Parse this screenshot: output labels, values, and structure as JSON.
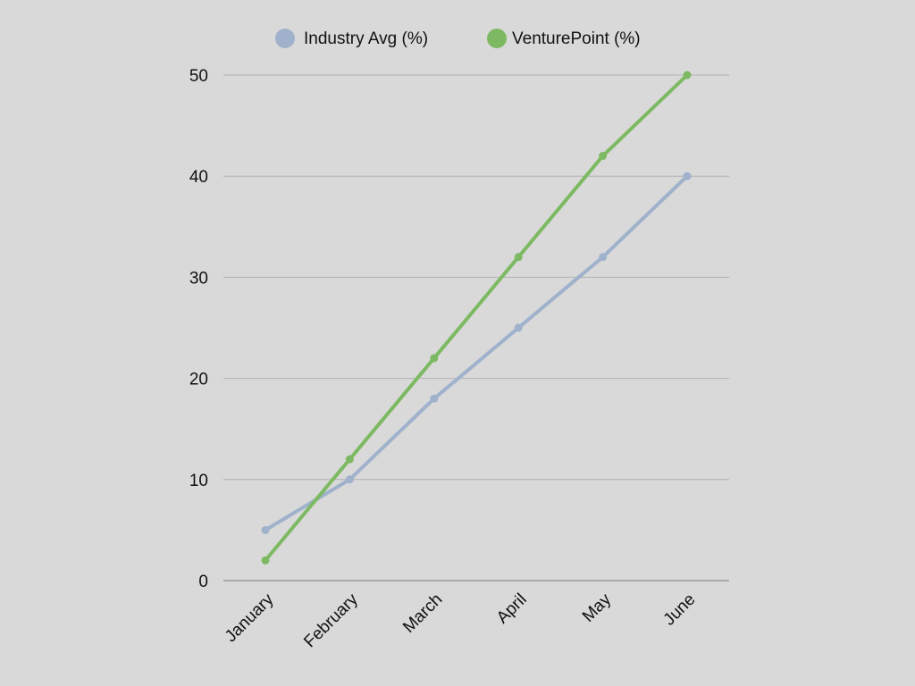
{
  "chart_data": {
    "type": "line",
    "categories": [
      "January",
      "February",
      "March",
      "April",
      "May",
      "June"
    ],
    "series": [
      {
        "name": "Industry Avg (%)",
        "values": [
          5,
          10,
          18,
          25,
          32,
          40
        ],
        "color": "#9fb1cb"
      },
      {
        "name": "VenturePoint (%)",
        "values": [
          2,
          12,
          22,
          32,
          42,
          50
        ],
        "color": "#7db962"
      }
    ],
    "ylim": [
      0,
      50
    ],
    "yticks": [
      0,
      10,
      20,
      30,
      40,
      50
    ],
    "grid": true,
    "legend_position": "top-center",
    "background": "#d9d9d9",
    "gridline_color": "#b0b0b0",
    "axis_color": "#8a8a8a"
  }
}
